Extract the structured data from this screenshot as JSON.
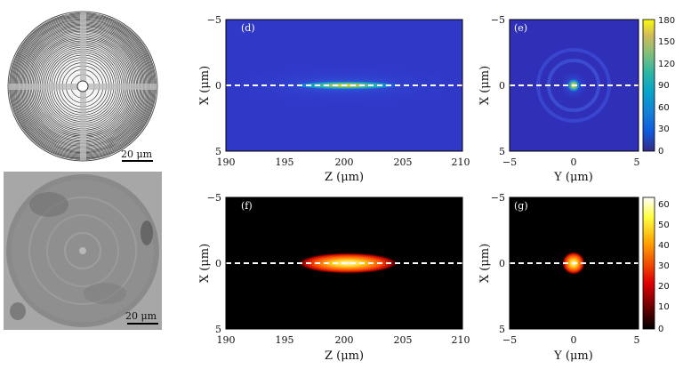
{
  "images": {
    "top_scale": "20 μm",
    "bottom_scale": "20 μm"
  },
  "panels": {
    "d": {
      "label": "(d)",
      "x_ticks": [
        "190",
        "195",
        "200",
        "205",
        "210"
      ],
      "y_ticks": [
        "−5",
        "0",
        "5"
      ]
    },
    "e": {
      "label": "(e)",
      "x_ticks": [
        "−5",
        "0",
        "5"
      ],
      "y_ticks": [
        "−5",
        "0",
        "5"
      ]
    },
    "f": {
      "label": "(f)",
      "x_ticks": [
        "190",
        "195",
        "200",
        "205",
        "210"
      ],
      "y_ticks": [
        "−5",
        "0",
        "5"
      ]
    },
    "g": {
      "label": "(g)",
      "x_ticks": [
        "−5",
        "0",
        "5"
      ],
      "y_ticks": [
        "−5",
        "0",
        "5"
      ]
    }
  },
  "axis_labels": {
    "z": "Z (μm)",
    "y": "Y (μm)",
    "x": "X (μm)"
  },
  "colorbars": {
    "top": {
      "ticks": [
        "180",
        "150",
        "120",
        "90",
        "60",
        "30",
        "0"
      ],
      "colormap": "parula"
    },
    "bottom": {
      "ticks": [
        "60",
        "50",
        "40",
        "30",
        "20",
        "10",
        "0"
      ],
      "colormap": "hot"
    }
  },
  "chart_data": [
    {
      "type": "heatmap",
      "panel": "d",
      "xlim": [
        190,
        210
      ],
      "ylim": [
        -5,
        5
      ],
      "clim": [
        0,
        180
      ],
      "peak_z": 200,
      "peak_x": 0
    },
    {
      "type": "heatmap",
      "panel": "e",
      "xlim": [
        -5,
        5
      ],
      "ylim": [
        -5,
        5
      ],
      "clim": [
        0,
        180
      ],
      "peak_y": 0,
      "peak_x": 0
    },
    {
      "type": "heatmap",
      "panel": "f",
      "xlim": [
        190,
        210
      ],
      "ylim": [
        -5,
        5
      ],
      "clim": [
        0,
        60
      ],
      "peak_z": 200,
      "peak_x": 0
    },
    {
      "type": "heatmap",
      "panel": "g",
      "xlim": [
        -5,
        5
      ],
      "ylim": [
        -5,
        5
      ],
      "clim": [
        0,
        60
      ],
      "peak_y": 0,
      "peak_x": 0
    }
  ]
}
